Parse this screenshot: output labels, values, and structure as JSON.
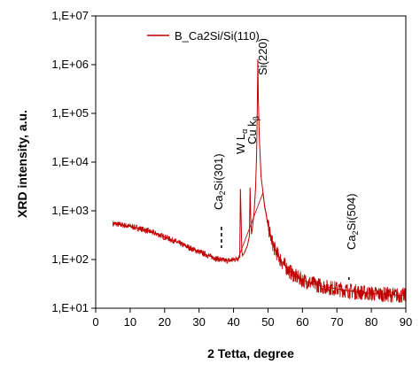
{
  "chart_data": {
    "type": "line",
    "xlabel": "2 Tetta, degree",
    "ylabel": "XRD intensity, a.u.",
    "xlim": [
      0,
      90
    ],
    "ylim": [
      10,
      10000000
    ],
    "y_scale": "log",
    "x_ticks": [
      "0",
      "10",
      "20",
      "30",
      "40",
      "50",
      "60",
      "70",
      "80",
      "90"
    ],
    "y_ticks": [
      "1,E+01",
      "1,E+02",
      "1,E+03",
      "1,E+04",
      "1,E+05",
      "1,E+06",
      "1,E+07"
    ],
    "grid": false,
    "legend_position": "top-left",
    "series_color": "#c00000",
    "series": [
      {
        "name": "B_Ca2Si/Si(110)",
        "x": [
          5,
          7,
          10,
          13,
          16,
          19,
          22,
          25,
          28,
          31,
          33,
          35,
          37,
          38,
          39,
          40,
          41,
          41.8,
          42.0,
          42.2,
          42.4,
          42.6,
          43,
          44,
          44.6,
          44.8,
          45.0,
          45.2,
          45.5,
          46,
          46.4,
          46.7,
          46.9,
          47.05,
          47.2,
          47.5,
          48,
          49,
          50,
          51,
          52,
          54,
          56,
          58,
          60,
          63,
          66,
          70,
          75,
          80,
          85,
          90
        ],
        "y": [
          550,
          520,
          480,
          430,
          370,
          310,
          255,
          205,
          165,
          135,
          118,
          105,
          96,
          95,
          96,
          100,
          105,
          110,
          2800,
          700,
          150,
          120,
          130,
          190,
          300,
          3000,
          700,
          330,
          450,
          1000,
          3000,
          15000,
          150000,
          1300000,
          200000,
          30000,
          5000,
          1300,
          500,
          250,
          160,
          90,
          60,
          45,
          38,
          32,
          28,
          25,
          22,
          20,
          19,
          18
        ]
      }
    ],
    "annotations": [
      {
        "text": "Ca",
        "sub": "2",
        "text2": "Si(301)",
        "x": 36.5
      },
      {
        "text": "W L",
        "sub": "α",
        "text2": "",
        "x": 42.2
      },
      {
        "text": "Cu k",
        "sub": "β",
        "text2": "",
        "x": 44.8
      },
      {
        "text": "Si(220)",
        "sub": "",
        "text2": "",
        "x": 47.05
      },
      {
        "text": "Ca",
        "sub": "2",
        "text2": "Si(504)",
        "x": 73.5
      }
    ]
  }
}
